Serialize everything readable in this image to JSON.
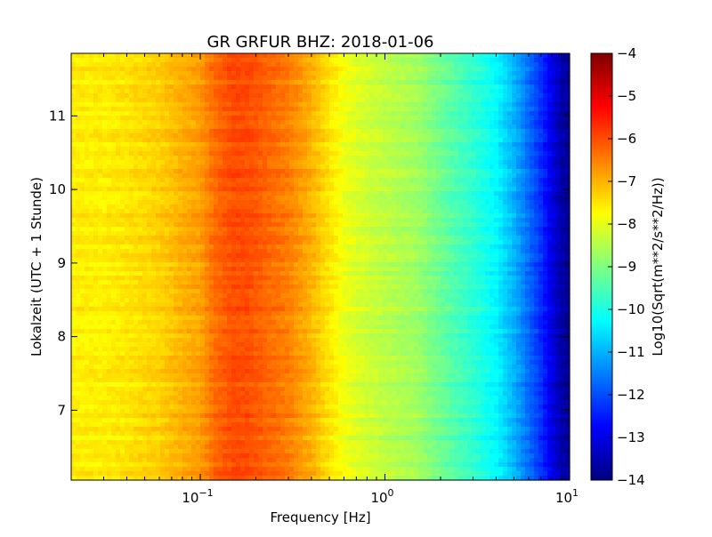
{
  "chart_data": {
    "type": "heatmap",
    "title": "GR GRFUR BHZ: 2018-01-06",
    "xlabel": "Frequency [Hz]",
    "ylabel": "Lokalzeit (UTC + 1 Stunde)",
    "xscale": "log",
    "xlim": [
      0.02,
      10
    ],
    "ylim_inverted": [
      11.85,
      6.05
    ],
    "x_ticks": [
      {
        "value": 0.1,
        "base": "10",
        "exp": "−1"
      },
      {
        "value": 1,
        "base": "10",
        "exp": "0"
      },
      {
        "value": 10,
        "base": "10",
        "exp": "1"
      }
    ],
    "y_ticks": [
      {
        "value": 7,
        "label": "7"
      },
      {
        "value": 8,
        "label": "8"
      },
      {
        "value": 9,
        "label": "9"
      },
      {
        "value": 10,
        "label": "10"
      },
      {
        "value": 11,
        "label": "11"
      }
    ],
    "colorbar": {
      "label": "Log10(Sqrt(m**2/s**2/Hz))",
      "range": [
        -14,
        -4
      ],
      "colormap": "jet",
      "ticks": [
        {
          "value": -4,
          "label": "−4"
        },
        {
          "value": -5,
          "label": "−5"
        },
        {
          "value": -6,
          "label": "−6"
        },
        {
          "value": -7,
          "label": "−7"
        },
        {
          "value": -8,
          "label": "−8"
        },
        {
          "value": -9,
          "label": "−9"
        },
        {
          "value": -10,
          "label": "−10"
        },
        {
          "value": -11,
          "label": "−11"
        },
        {
          "value": -12,
          "label": "−12"
        },
        {
          "value": -13,
          "label": "−13"
        },
        {
          "value": -14,
          "label": "−14"
        }
      ]
    },
    "spectrum_profile": {
      "frequency_hz": [
        0.02,
        0.03,
        0.04,
        0.06,
        0.08,
        0.1,
        0.12,
        0.15,
        0.18,
        0.22,
        0.3,
        0.4,
        0.5,
        0.6,
        0.7,
        1.0,
        1.5,
        2.0,
        3.0,
        4.0,
        5.0,
        6.0,
        7.0,
        8.0,
        9.0,
        10.0
      ],
      "log10_amplitude": [
        -7.6,
        -7.6,
        -7.5,
        -7.3,
        -7.0,
        -6.8,
        -6.3,
        -6.0,
        -6.0,
        -6.2,
        -6.5,
        -7.0,
        -7.5,
        -7.9,
        -8.1,
        -8.4,
        -8.7,
        -9.2,
        -9.8,
        -10.3,
        -11.0,
        -11.7,
        -12.3,
        -13.0,
        -13.6,
        -13.8
      ]
    }
  }
}
